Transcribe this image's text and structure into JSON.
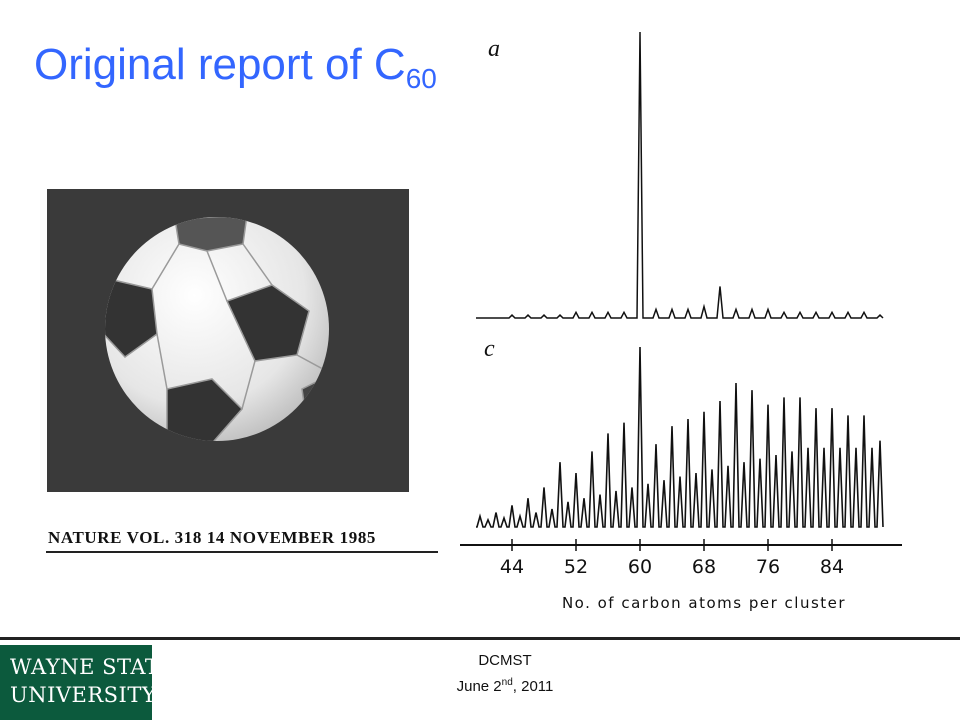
{
  "title": {
    "text": "Original report of C",
    "subscript": "60"
  },
  "citation": "NATURE VOL. 318 14 NOVEMBER 1985",
  "footer": {
    "org": "DCMST",
    "date_prefix": "June 2",
    "date_sup": "nd",
    "date_suffix": ", 2011"
  },
  "logo": {
    "line1": "WAYNE STATE",
    "line2": "UNIVERSITY"
  },
  "colors": {
    "title": "#3366ff",
    "logo_bg": "#0c5a3d"
  },
  "chart_data": [
    {
      "type": "line",
      "panel_label": "a",
      "x": [
        40,
        41,
        42,
        43,
        44,
        45,
        46,
        47,
        48,
        49,
        50,
        51,
        52,
        53,
        54,
        55,
        56,
        57,
        58,
        59,
        60,
        61,
        62,
        63,
        64,
        65,
        66,
        67,
        68,
        69,
        70,
        71,
        72,
        73,
        74,
        75,
        76,
        77,
        78,
        79,
        80,
        81,
        82,
        83,
        84,
        85,
        86,
        87,
        88,
        89,
        90
      ],
      "values": [
        0,
        0,
        0,
        0,
        1,
        0,
        1,
        0,
        1,
        0,
        1,
        0,
        2,
        0,
        2,
        0,
        2,
        0,
        2,
        0,
        100,
        0,
        3,
        0,
        3,
        0,
        3,
        0,
        4,
        0,
        11,
        0,
        3,
        0,
        3,
        0,
        3,
        0,
        2,
        0,
        2,
        0,
        2,
        0,
        2,
        0,
        2,
        0,
        2,
        0,
        1
      ]
    },
    {
      "type": "line",
      "panel_label": "c",
      "xlabel": "No. of carbon atoms per cluster",
      "x_ticks": [
        44,
        52,
        60,
        68,
        76,
        84
      ],
      "x": [
        40,
        41,
        42,
        43,
        44,
        45,
        46,
        47,
        48,
        49,
        50,
        51,
        52,
        53,
        54,
        55,
        56,
        57,
        58,
        59,
        60,
        61,
        62,
        63,
        64,
        65,
        66,
        67,
        68,
        69,
        70,
        71,
        72,
        73,
        74,
        75,
        76,
        77,
        78,
        79,
        80,
        81,
        82,
        83,
        84,
        85,
        86,
        87,
        88,
        89,
        90
      ],
      "values": [
        6,
        4,
        8,
        5,
        12,
        6,
        16,
        8,
        22,
        10,
        36,
        14,
        30,
        16,
        42,
        18,
        52,
        20,
        58,
        22,
        100,
        24,
        46,
        26,
        56,
        28,
        60,
        30,
        64,
        32,
        70,
        34,
        80,
        36,
        76,
        38,
        68,
        40,
        72,
        42,
        72,
        44,
        66,
        44,
        66,
        44,
        62,
        44,
        62,
        44,
        48
      ]
    }
  ]
}
